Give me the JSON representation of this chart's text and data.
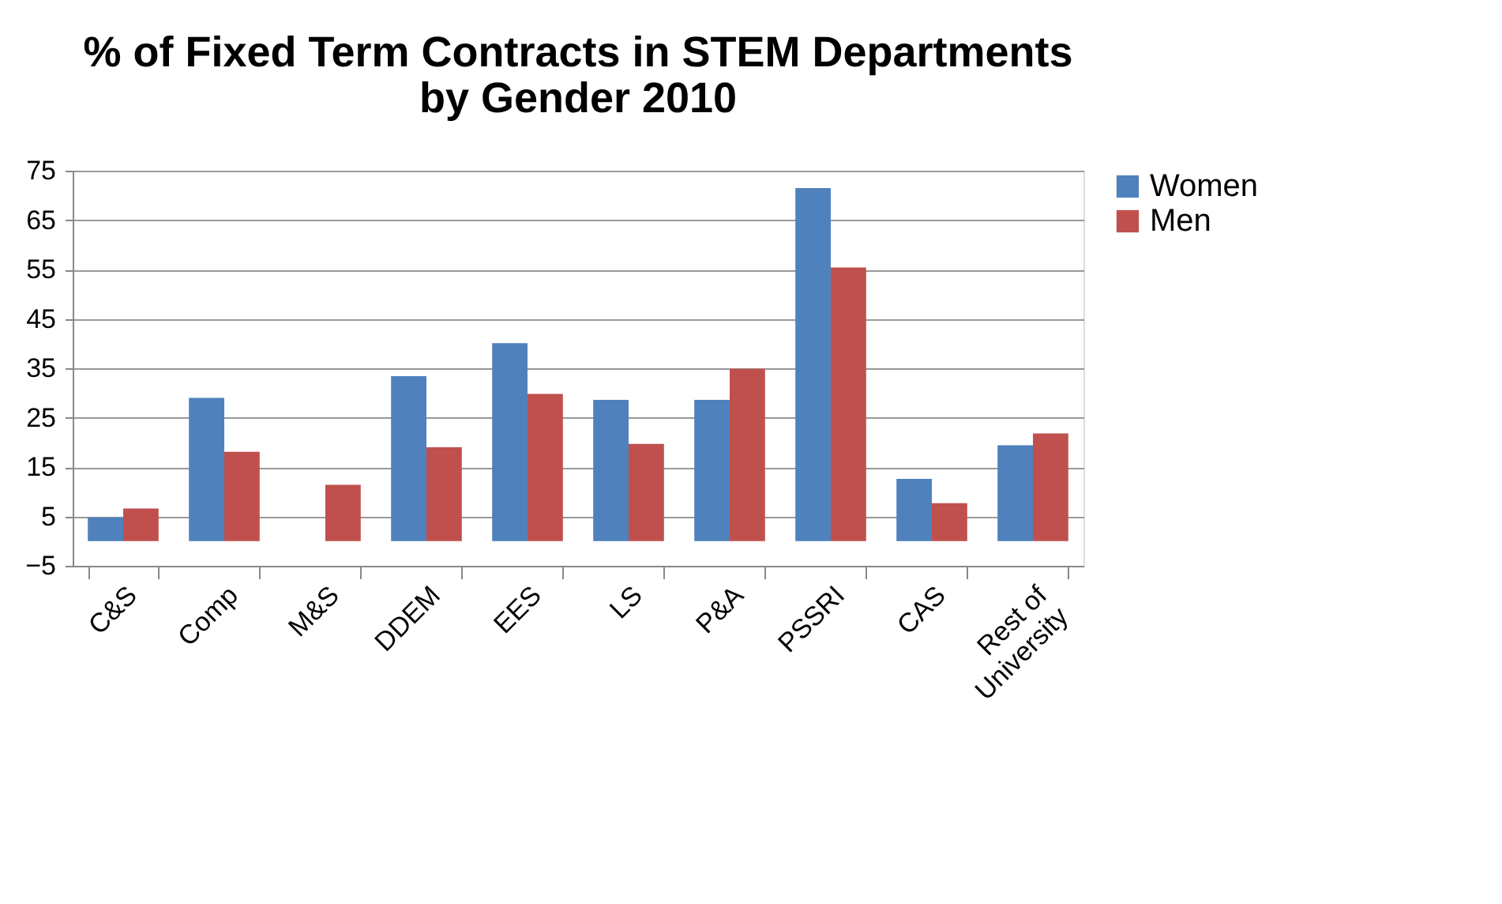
{
  "chart_data": {
    "type": "bar",
    "title": [
      "% of Fixed Term Contracts in STEM Departments",
      "by Gender 2010"
    ],
    "categories": [
      "C&S",
      "Comp",
      "M&S",
      "DDEM",
      "EES",
      "LS",
      "P&A",
      "PSSRI",
      "CAS",
      "Rest of University"
    ],
    "series": [
      {
        "name": "Women",
        "color": "#4f81bd",
        "values": [
          4.8,
          29.0,
          null,
          33.4,
          40.1,
          28.6,
          28.6,
          71.5,
          12.6,
          19.4
        ]
      },
      {
        "name": "Men",
        "color": "#c0504d",
        "values": [
          6.6,
          18.1,
          11.4,
          19.0,
          29.8,
          19.7,
          34.9,
          55.4,
          7.7,
          21.8
        ]
      }
    ],
    "ylim": [
      -5,
      75
    ],
    "yticks": [
      -5,
      5,
      15,
      25,
      35,
      45,
      55,
      65,
      75
    ],
    "grid": "y",
    "legend": "right"
  }
}
